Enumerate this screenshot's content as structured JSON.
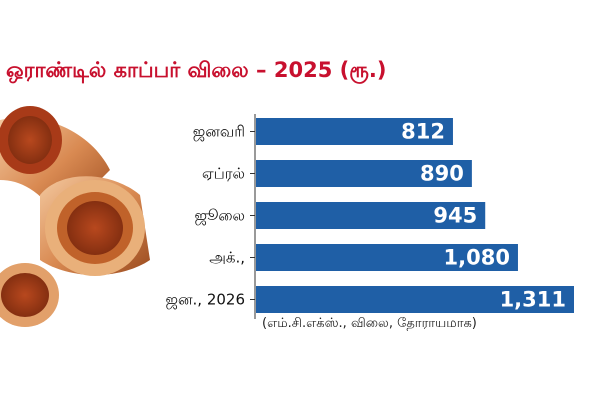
{
  "title": "ஒராண்டில் காப்பர் விலை – 2025 (ரூ.)",
  "caption": "(எம்.சி.எக்ஸ்., விலை, தோராயமாக)",
  "colors": {
    "title": "#c8102e",
    "bar": "#1f5fa6",
    "value_text": "#ffffff",
    "copper": "#c8733a"
  },
  "chart_data": {
    "type": "bar",
    "orientation": "horizontal",
    "title": "ஒராண்டில் காப்பர் விலை – 2025 (ரூ.)",
    "categories": [
      "ஜனவரி",
      "ஏப்ரல்",
      "ஜூலை",
      "அக்.,",
      "ஜன., 2026"
    ],
    "values": [
      812,
      890,
      945,
      1080,
      1311
    ],
    "value_labels": [
      "812",
      "890",
      "945",
      "1,080",
      "1,311"
    ],
    "xlim": [
      0,
      1311
    ],
    "grid": false,
    "legend": "none"
  }
}
